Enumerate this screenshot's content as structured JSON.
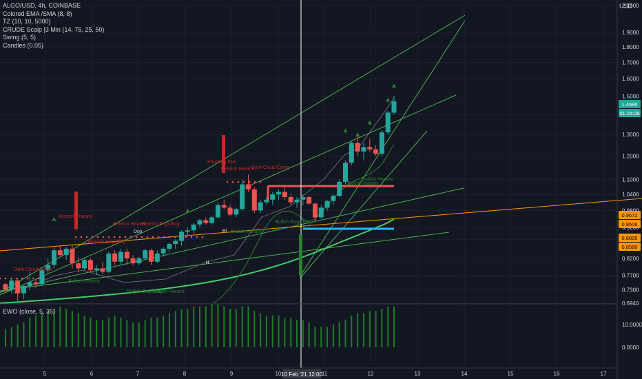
{
  "legend": {
    "symbol": "ALGO/USD, 4h, COINBASE",
    "indicators": [
      "Colored EMA /SMA (8, 8)",
      "TZ (10, 10, 5000)",
      "CRUDE Scalp |3 Min (14, 75, 25, 50)",
      "Swing (5, 5)",
      "Candles (0.05)"
    ]
  },
  "ewo": {
    "label": "EWO (close, 5, 35)",
    "ticks": [
      "10.0000",
      "0.0000"
    ]
  },
  "price_axis": {
    "unit": "USD",
    "ticks": [
      "2.1000",
      "1.9000",
      "1.8000",
      "1.7000",
      "1.6000",
      "1.5000",
      "1.4000",
      "1.3000",
      "1.2000",
      "1.1000",
      "1.0400",
      "0.9800",
      "0.9200",
      "0.8800",
      "0.8200",
      "0.7700",
      "0.7300",
      "0.6940"
    ],
    "badges": [
      {
        "text": "1.4686",
        "bg": "#26a69a",
        "fg": "#ffffff"
      },
      {
        "text": "01:24:28",
        "bg": "#26a69a",
        "fg": "#ffffff"
      },
      {
        "text": "0.9672",
        "bg": "#ff9800",
        "fg": "#000000"
      },
      {
        "text": "0.9506",
        "bg": "#ff9800",
        "fg": "#000000"
      },
      {
        "text": "0.8895",
        "bg": "#ff9800",
        "fg": "#000000"
      },
      {
        "text": "0.8586",
        "bg": "#ff9800",
        "fg": "#000000"
      }
    ]
  },
  "time_axis": {
    "ticks": [
      "5",
      "6",
      "7",
      "8",
      "9",
      "10",
      "11",
      "12",
      "13",
      "14",
      "15",
      "16",
      "17"
    ],
    "crosshair": "10 Feb '21  12:00"
  },
  "annotations": {
    "red": [
      "Dark Cloud Cover",
      "Bearish Harami",
      "Bearish Engulfing",
      "Bearish Harami",
      "Bearish Engulfing",
      "Shooting Star",
      "Bearish Harami",
      "Dark Cloud Cover"
    ],
    "green": [
      "Bullish Harami",
      "Bullish Engulfing",
      "Bullish Harami",
      "Bullish Harami",
      "Bullish Engulfing",
      "Bullish Harami",
      "Bullish Harami"
    ],
    "white": [
      "Doji",
      "Bl",
      "H"
    ]
  },
  "colors": {
    "up": "#26a69a",
    "down": "#ef5350",
    "trend": "#4caf50",
    "ema": "#ff9800",
    "hline_red": "#ef5350",
    "hline_blue": "#29b6f6",
    "crosshair": "#ffffff"
  },
  "chart_data": {
    "type": "candlestick",
    "title": "ALGO/USD, 4h, COINBASE",
    "xlabel": "",
    "ylabel": "USD",
    "ylim": [
      0.694,
      2.1
    ],
    "candles": [
      [
        0.745,
        0.75,
        0.725,
        0.73
      ],
      [
        0.73,
        0.76,
        0.72,
        0.755
      ],
      [
        0.755,
        0.76,
        0.7,
        0.72
      ],
      [
        0.72,
        0.745,
        0.705,
        0.74
      ],
      [
        0.74,
        0.78,
        0.73,
        0.75
      ],
      [
        0.75,
        0.76,
        0.735,
        0.745
      ],
      [
        0.745,
        0.79,
        0.74,
        0.785
      ],
      [
        0.785,
        0.82,
        0.775,
        0.8
      ],
      [
        0.8,
        0.855,
        0.79,
        0.845
      ],
      [
        0.845,
        0.86,
        0.825,
        0.83
      ],
      [
        0.83,
        0.855,
        0.815,
        0.85
      ],
      [
        0.85,
        0.86,
        0.79,
        0.805
      ],
      [
        0.805,
        0.82,
        0.78,
        0.79
      ],
      [
        0.79,
        0.82,
        0.785,
        0.815
      ],
      [
        0.815,
        0.82,
        0.78,
        0.785
      ],
      [
        0.785,
        0.8,
        0.77,
        0.79
      ],
      [
        0.79,
        0.81,
        0.775,
        0.78
      ],
      [
        0.78,
        0.84,
        0.775,
        0.835
      ],
      [
        0.835,
        0.845,
        0.8,
        0.81
      ],
      [
        0.81,
        0.85,
        0.8,
        0.84
      ],
      [
        0.84,
        0.85,
        0.8,
        0.82
      ],
      [
        0.82,
        0.83,
        0.8,
        0.805
      ],
      [
        0.805,
        0.825,
        0.8,
        0.82
      ],
      [
        0.82,
        0.85,
        0.815,
        0.845
      ],
      [
        0.845,
        0.85,
        0.8,
        0.81
      ],
      [
        0.81,
        0.845,
        0.805,
        0.835
      ],
      [
        0.835,
        0.855,
        0.825,
        0.85
      ],
      [
        0.85,
        0.87,
        0.84,
        0.865
      ],
      [
        0.865,
        0.88,
        0.85,
        0.875
      ],
      [
        0.875,
        0.91,
        0.86,
        0.905
      ],
      [
        0.905,
        0.92,
        0.89,
        0.91
      ],
      [
        0.91,
        0.935,
        0.9,
        0.93
      ],
      [
        0.93,
        0.95,
        0.92,
        0.945
      ],
      [
        0.945,
        0.955,
        0.93,
        0.935
      ],
      [
        0.935,
        0.96,
        0.93,
        0.955
      ],
      [
        0.955,
        1.01,
        0.95,
        1.0
      ],
      [
        1.0,
        1.02,
        0.985,
        0.99
      ],
      [
        0.99,
        1.0,
        0.96,
        0.965
      ],
      [
        0.965,
        0.99,
        0.955,
        0.985
      ],
      [
        0.985,
        1.1,
        0.98,
        1.08
      ],
      [
        1.08,
        1.12,
        1.05,
        1.06
      ],
      [
        1.06,
        1.07,
        0.97,
        0.98
      ],
      [
        0.98,
        1.02,
        0.97,
        1.01
      ],
      [
        1.01,
        1.03,
        1.0,
        1.02
      ],
      [
        1.02,
        1.05,
        1.0,
        1.04
      ],
      [
        1.04,
        1.06,
        1.02,
        1.05
      ],
      [
        1.05,
        1.07,
        1.02,
        1.03
      ],
      [
        1.03,
        1.04,
        1.0,
        1.01
      ],
      [
        1.01,
        1.03,
        0.99,
        1.02
      ],
      [
        1.02,
        1.04,
        1.0,
        1.03
      ],
      [
        1.03,
        1.035,
        1.0,
        1.005
      ],
      [
        1.005,
        1.01,
        0.94,
        0.955
      ],
      [
        0.955,
        1.0,
        0.95,
        0.99
      ],
      [
        0.99,
        1.02,
        0.98,
        1.015
      ],
      [
        1.015,
        1.04,
        1.0,
        1.035
      ],
      [
        1.035,
        1.1,
        1.03,
        1.09
      ],
      [
        1.09,
        1.18,
        1.08,
        1.17
      ],
      [
        1.17,
        1.27,
        1.16,
        1.26
      ],
      [
        1.26,
        1.3,
        1.2,
        1.22
      ],
      [
        1.22,
        1.26,
        1.18,
        1.24
      ],
      [
        1.24,
        1.28,
        1.22,
        1.23
      ],
      [
        1.23,
        1.25,
        1.2,
        1.21
      ],
      [
        1.21,
        1.32,
        1.2,
        1.31
      ],
      [
        1.31,
        1.42,
        1.3,
        1.41
      ],
      [
        1.41,
        1.5,
        1.4,
        1.47
      ]
    ],
    "ewo": [
      8,
      9,
      10,
      11,
      13,
      14,
      15,
      16,
      17,
      18,
      17,
      16,
      15,
      14,
      13,
      12,
      12,
      13,
      14,
      13,
      12,
      11,
      11,
      12,
      13,
      13,
      14,
      15,
      16,
      17,
      17,
      18,
      18,
      18,
      19,
      19,
      18,
      17,
      17,
      18,
      18,
      16,
      15,
      14,
      14,
      14,
      13,
      13,
      12,
      12,
      11,
      9,
      9,
      9,
      10,
      11,
      12,
      14,
      15,
      15,
      16,
      16,
      17,
      18,
      18
    ]
  }
}
